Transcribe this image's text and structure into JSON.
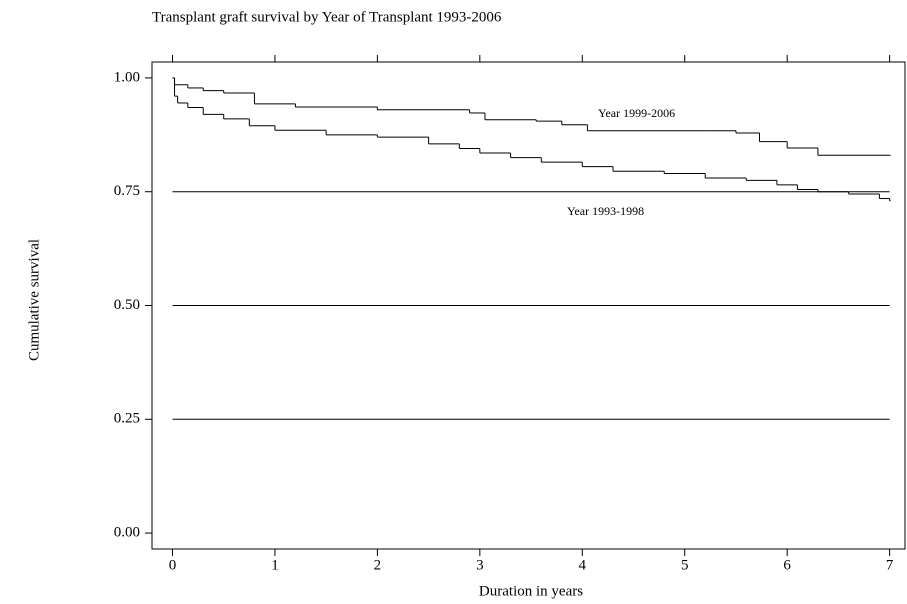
{
  "chart_data": {
    "type": "line",
    "step": "post",
    "title": "Transplant graft survival by Year of Transplant 1993-2006",
    "x_label": "Duration in years",
    "y_label": "Cumulative survival",
    "xlim": [
      -0.2,
      7.15
    ],
    "ylim": [
      -0.035,
      1.035
    ],
    "xticks": [
      0,
      1,
      2,
      3,
      4,
      5,
      6,
      7
    ],
    "yticks": [
      {
        "value": 0,
        "label": "0.00"
      },
      {
        "value": 0.25,
        "label": "0.25"
      },
      {
        "value": 0.5,
        "label": "0.50"
      },
      {
        "value": 0.75,
        "label": "0.75"
      },
      {
        "value": 1,
        "label": "1.00"
      }
    ],
    "grid": true,
    "series": [
      {
        "name": "Year 1999-2006",
        "color": "#000000",
        "x": [
          0,
          0.02,
          0.15,
          0.3,
          0.5,
          0.8,
          1.2,
          2.0,
          2.9,
          3.05,
          3.55,
          3.8,
          4.05,
          5.2,
          5.5,
          5.73,
          6.0,
          6.3,
          7.0
        ],
        "values": [
          1.0,
          0.985,
          0.978,
          0.972,
          0.967,
          0.943,
          0.936,
          0.93,
          0.923,
          0.908,
          0.905,
          0.897,
          0.884,
          0.884,
          0.879,
          0.86,
          0.846,
          0.83,
          0.83
        ]
      },
      {
        "name": "Year 1993-1998",
        "color": "#000000",
        "x": [
          0,
          0.02,
          0.05,
          0.15,
          0.3,
          0.5,
          0.75,
          1.0,
          1.5,
          2.0,
          2.5,
          2.8,
          3.0,
          3.3,
          3.6,
          4.0,
          4.3,
          4.8,
          5.2,
          5.6,
          5.9,
          6.1,
          6.3,
          6.6,
          6.9,
          7.0
        ],
        "values": [
          1.0,
          0.96,
          0.945,
          0.935,
          0.92,
          0.91,
          0.895,
          0.885,
          0.875,
          0.87,
          0.855,
          0.845,
          0.835,
          0.825,
          0.815,
          0.805,
          0.795,
          0.79,
          0.78,
          0.775,
          0.765,
          0.755,
          0.75,
          0.745,
          0.735,
          0.73
        ]
      }
    ]
  }
}
